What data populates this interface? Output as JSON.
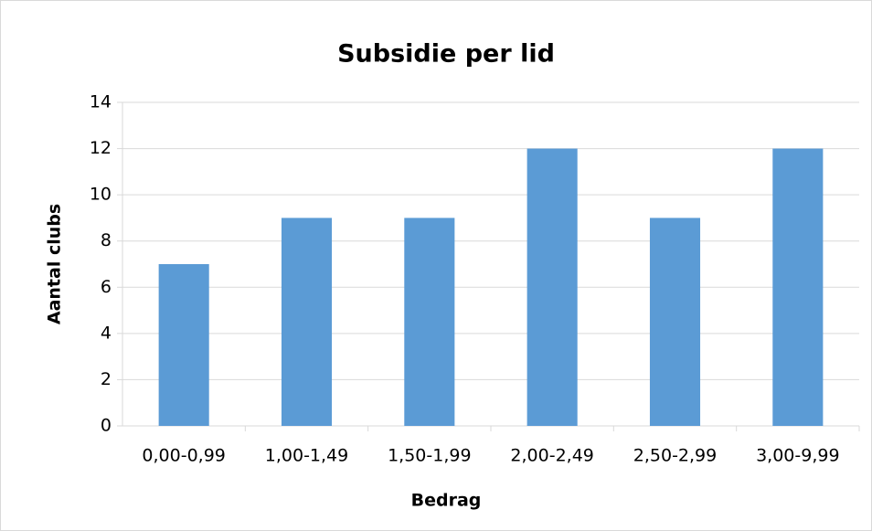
{
  "chart_data": {
    "type": "bar",
    "title": "Subsidie per lid",
    "x_label": "Bedrag",
    "y_label": "Aantal clubs",
    "categories": [
      "0,00-0,99",
      "1,00-1,49",
      "1,50-1,99",
      "2,00-2,49",
      "2,50-2,99",
      "3,00-9,99"
    ],
    "values": [
      7,
      9,
      9,
      12,
      9,
      12
    ],
    "color": "#5b9bd5",
    "ylim": [
      0,
      14
    ],
    "yticks": [
      0,
      2,
      4,
      6,
      8,
      10,
      12,
      14
    ],
    "grid": true
  }
}
